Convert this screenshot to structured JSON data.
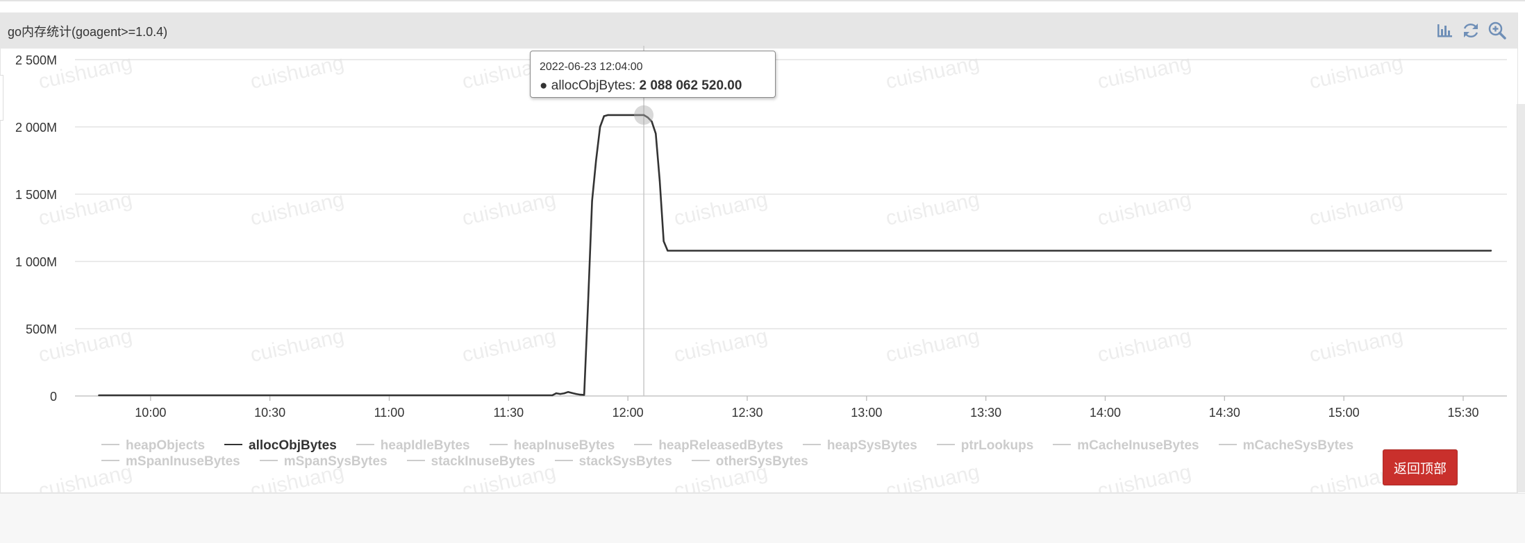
{
  "panel": {
    "title": "go内存统计(goagent>=1.0.4)",
    "tools": [
      {
        "name": "bar-chart-icon"
      },
      {
        "name": "refresh-icon"
      },
      {
        "name": "zoom-in-icon"
      }
    ]
  },
  "watermark": "cuishuang",
  "tooltip": {
    "date": "2022-06-23 12:04:00",
    "series": "allocObjBytes",
    "value": "2 088 062 520.00"
  },
  "back_to_top": "返回顶部",
  "colors": {
    "line": "#333333",
    "grid": "#dddddd",
    "legend_inactive": "#cccccc",
    "button": "#c9302c",
    "header": "#e6e6e6"
  },
  "chart_data": {
    "type": "line",
    "title": "",
    "xlabel": "",
    "ylabel": "",
    "ylim": [
      0,
      2500
    ],
    "y_unit": "M",
    "yticks": [
      {
        "v": 0,
        "label": "0"
      },
      {
        "v": 500,
        "label": "500M"
      },
      {
        "v": 1000,
        "label": "1 000M"
      },
      {
        "v": 1500,
        "label": "1 500M"
      },
      {
        "v": 2000,
        "label": "2 000M"
      },
      {
        "v": 2500,
        "label": "2 500M"
      }
    ],
    "xticks": [
      "10:00",
      "10:30",
      "11:00",
      "11:30",
      "12:00",
      "12:30",
      "13:00",
      "13:30",
      "14:00",
      "14:30",
      "15:00",
      "15:30"
    ],
    "xlim": [
      "09:41",
      "15:41"
    ],
    "highlight_x": "12:04",
    "grid": true,
    "legend_position": "bottom",
    "legend": [
      {
        "name": "heapObjects",
        "active": false
      },
      {
        "name": "allocObjBytes",
        "active": true
      },
      {
        "name": "heapIdleBytes",
        "active": false
      },
      {
        "name": "heapInuseBytes",
        "active": false
      },
      {
        "name": "heapReleasedBytes",
        "active": false
      },
      {
        "name": "heapSysBytes",
        "active": false
      },
      {
        "name": "ptrLookups",
        "active": false
      },
      {
        "name": "mCacheInuseBytes",
        "active": false
      },
      {
        "name": "mCacheSysBytes",
        "active": false
      },
      {
        "name": "mSpanInuseBytes",
        "active": false
      },
      {
        "name": "mSpanSysBytes",
        "active": false
      },
      {
        "name": "stackInuseBytes",
        "active": false
      },
      {
        "name": "stackSysBytes",
        "active": false
      },
      {
        "name": "otherSysBytes",
        "active": false
      }
    ],
    "series": [
      {
        "name": "allocObjBytes",
        "points": [
          [
            "09:47",
            5
          ],
          [
            "11:41",
            5
          ],
          [
            "11:42",
            20
          ],
          [
            "11:43",
            15
          ],
          [
            "11:44",
            20
          ],
          [
            "11:45",
            30
          ],
          [
            "11:46",
            22
          ],
          [
            "11:47",
            15
          ],
          [
            "11:48",
            10
          ],
          [
            "11:49",
            8
          ],
          [
            "11:50",
            700
          ],
          [
            "11:51",
            1450
          ],
          [
            "11:52",
            1750
          ],
          [
            "11:53",
            2000
          ],
          [
            "11:54",
            2080
          ],
          [
            "11:55",
            2088
          ],
          [
            "12:02",
            2088
          ],
          [
            "12:03",
            2088
          ],
          [
            "12:04",
            2088
          ],
          [
            "12:05",
            2070
          ],
          [
            "12:06",
            2040
          ],
          [
            "12:07",
            1950
          ],
          [
            "12:08",
            1600
          ],
          [
            "12:09",
            1150
          ],
          [
            "12:10",
            1080
          ],
          [
            "15:37",
            1080
          ]
        ]
      }
    ]
  }
}
